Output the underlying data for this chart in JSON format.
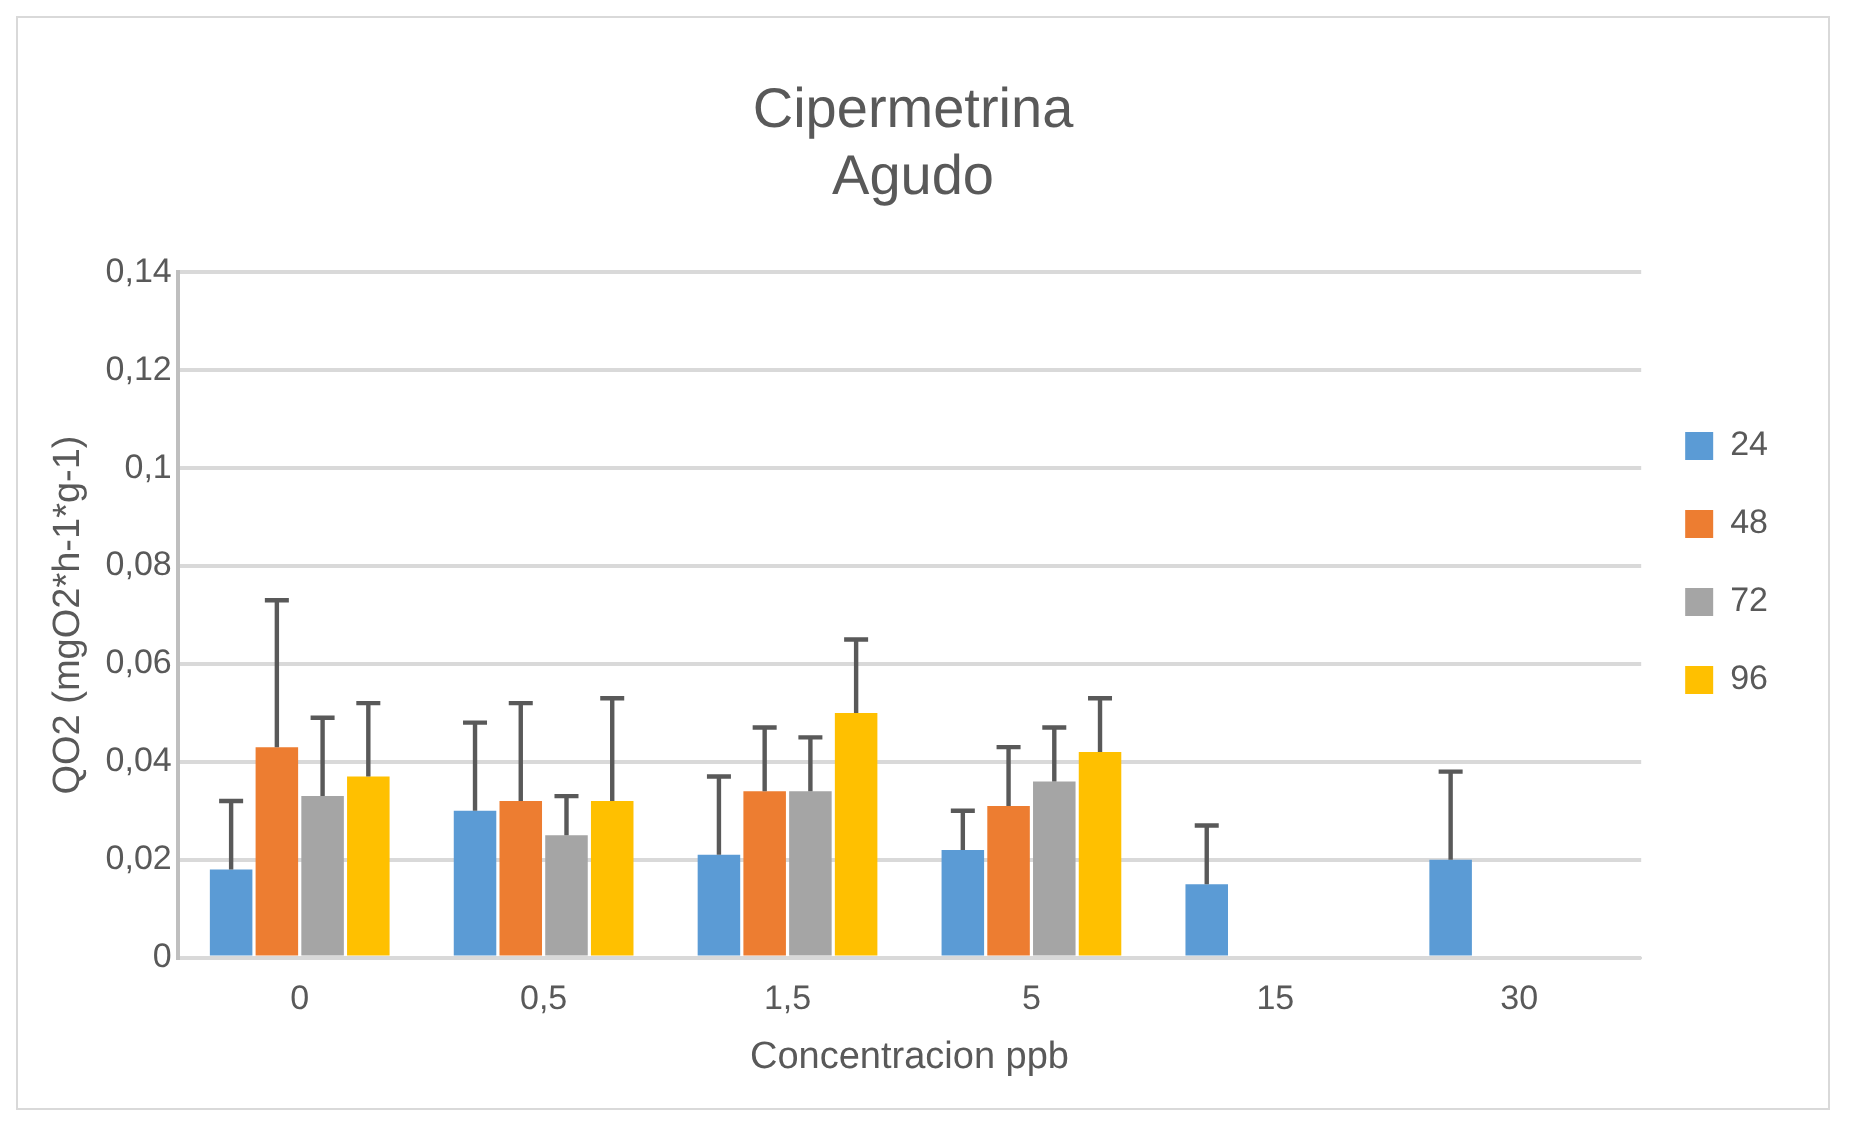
{
  "chart_data": {
    "type": "bar",
    "title": [
      "Cipermetrina",
      "Agudo"
    ],
    "xlabel": "Concentracion ppb",
    "ylabel": "QO2 (mgO2*h-1*g-1)",
    "categories": [
      "0",
      "0,5",
      "1,5",
      "5",
      "15",
      "30"
    ],
    "series": [
      {
        "name": "24",
        "color": "#5b9bd5",
        "values": [
          0.018,
          0.03,
          0.021,
          0.022,
          0.015,
          0.02
        ],
        "errors": [
          [
            0.018,
            0.032
          ],
          [
            0.03,
            0.048
          ],
          [
            0.021,
            0.037
          ],
          [
            0.022,
            0.03
          ],
          [
            0.015,
            0.027
          ],
          [
            0.02,
            0.038
          ]
        ]
      },
      {
        "name": "48",
        "color": "#ed7d31",
        "values": [
          0.043,
          0.032,
          0.034,
          0.031,
          null,
          null
        ],
        "errors": [
          [
            0.043,
            0.073
          ],
          [
            0.032,
            0.052
          ],
          [
            0.034,
            0.047
          ],
          [
            0.031,
            0.043
          ],
          null,
          null
        ]
      },
      {
        "name": "72",
        "color": "#a5a5a5",
        "values": [
          0.033,
          0.025,
          0.034,
          0.036,
          null,
          null
        ],
        "errors": [
          [
            0.033,
            0.049
          ],
          [
            0.025,
            0.033
          ],
          [
            0.034,
            0.045
          ],
          [
            0.036,
            0.047
          ],
          null,
          null
        ]
      },
      {
        "name": "96",
        "color": "#ffc000",
        "values": [
          0.037,
          0.032,
          0.05,
          0.042,
          null,
          null
        ],
        "errors": [
          [
            0.037,
            0.052
          ],
          [
            0.032,
            0.053
          ],
          [
            0.05,
            0.065
          ],
          [
            0.042,
            0.053
          ],
          null,
          null
        ]
      }
    ],
    "ylim": [
      0,
      0.14
    ],
    "yticks": [
      0,
      {
        "value": 0.02,
        "label": "0,02"
      },
      {
        "value": 0.04,
        "label": "0,04"
      },
      {
        "value": 0.06,
        "label": "0,06"
      },
      {
        "value": 0.08,
        "label": "0,08"
      },
      {
        "value": 0.1,
        "label": "0,1"
      },
      {
        "value": 0.12,
        "label": "0,12"
      },
      {
        "value": 0.14,
        "label": "0,14"
      }
    ],
    "grid": "y",
    "legend": "right"
  }
}
